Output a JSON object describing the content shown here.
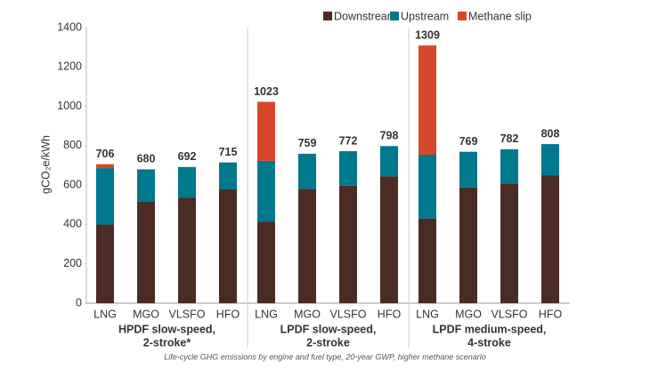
{
  "chart_data": {
    "type": "stacked-bar",
    "y_label": "gCO₂e/kWh",
    "caption": "Life-cycle GHG emissions by engine and fuel type, 20-year GWP, higher methane scenario",
    "categories": [
      "LNG",
      "MGO",
      "VLSFO",
      "HFO",
      "LNG",
      "MGO",
      "VLSFO",
      "HFO",
      "LNG",
      "MGO",
      "VLSFO",
      "HFO"
    ],
    "groups": [
      {
        "name": [
          "HPDF slow-speed,",
          "2-stroke*"
        ],
        "size": 4
      },
      {
        "name": [
          "LPDF slow-speed,",
          "2-stroke"
        ],
        "size": 4
      },
      {
        "name": [
          "LPDF medium-speed,",
          "4-stroke"
        ],
        "size": 4
      }
    ],
    "series": [
      {
        "name": "Downstream",
        "color": "#4a2c25",
        "values": [
          400,
          515,
          535,
          578,
          415,
          580,
          597,
          645,
          430,
          588,
          608,
          650
        ]
      },
      {
        "name": "Upstream",
        "color": "#00788e",
        "values": [
          286,
          165,
          157,
          137,
          308,
          179,
          175,
          153,
          324,
          181,
          174,
          158
        ]
      },
      {
        "name": "Methane slip",
        "color": "#d9472b",
        "values": [
          20,
          0,
          0,
          0,
          300,
          0,
          0,
          0,
          555,
          0,
          0,
          0
        ]
      }
    ],
    "totals": [
      706,
      680,
      692,
      715,
      1023,
      759,
      772,
      798,
      1309,
      769,
      782,
      808
    ],
    "ylim": [
      0,
      1400
    ],
    "yticks": [
      0,
      200,
      400,
      600,
      800,
      1000,
      1200,
      1400
    ]
  }
}
